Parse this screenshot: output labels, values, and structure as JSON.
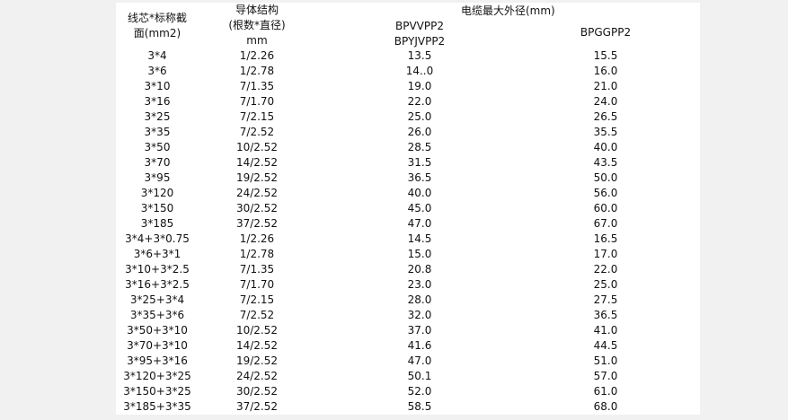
{
  "header": {
    "col1": [
      "线芯*标称截",
      "面(mm2)"
    ],
    "col2": [
      "导体结构",
      "(根数*直径)",
      "mm"
    ],
    "group": "电缆最大外径(mm)",
    "col3": [
      "BPVVPP2",
      "BPYJVPP2"
    ],
    "col4": "BPGGPP2"
  },
  "rows": [
    [
      "3*4",
      "1/2.26",
      "13.5",
      "15.5"
    ],
    [
      "3*6",
      "1/2.78",
      "14..0",
      "16.0"
    ],
    [
      "3*10",
      "7/1.35",
      "19.0",
      "21.0"
    ],
    [
      "3*16",
      "7/1.70",
      "22.0",
      "24.0"
    ],
    [
      "3*25",
      "7/2.15",
      "25.0",
      "26.5"
    ],
    [
      "3*35",
      "7/2.52",
      "26.0",
      "35.5"
    ],
    [
      "3*50",
      "10/2.52",
      "28.5",
      "40.0"
    ],
    [
      "3*70",
      "14/2.52",
      "31.5",
      "43.5"
    ],
    [
      "3*95",
      "19/2.52",
      "36.5",
      "50.0"
    ],
    [
      "3*120",
      "24/2.52",
      "40.0",
      "56.0"
    ],
    [
      "3*150",
      "30/2.52",
      "45.0",
      "60.0"
    ],
    [
      "3*185",
      "37/2.52",
      "47.0",
      "67.0"
    ],
    [
      "3*4+3*0.75",
      "1/2.26",
      "14.5",
      "16.5"
    ],
    [
      "3*6+3*1",
      "1/2.78",
      "15.0",
      "17.0"
    ],
    [
      "3*10+3*2.5",
      "7/1.35",
      "20.8",
      "22.0"
    ],
    [
      "3*16+3*2.5",
      "7/1.70",
      "23.0",
      "25.0"
    ],
    [
      "3*25+3*4",
      "7/2.15",
      "28.0",
      "27.5"
    ],
    [
      "3*35+3*6",
      "7/2.52",
      "32.0",
      "36.5"
    ],
    [
      "3*50+3*10",
      "10/2.52",
      "37.0",
      "41.0"
    ],
    [
      "3*70+3*10",
      "14/2.52",
      "41.6",
      "44.5"
    ],
    [
      "3*95+3*16",
      "19/2.52",
      "47.0",
      "51.0"
    ],
    [
      "3*120+3*25",
      "24/2.52",
      "50.1",
      "57.0"
    ],
    [
      "3*150+3*25",
      "30/2.52",
      "52.0",
      "61.0"
    ],
    [
      "3*185+3*35",
      "37/2.52",
      "58.5",
      "68.0"
    ]
  ]
}
